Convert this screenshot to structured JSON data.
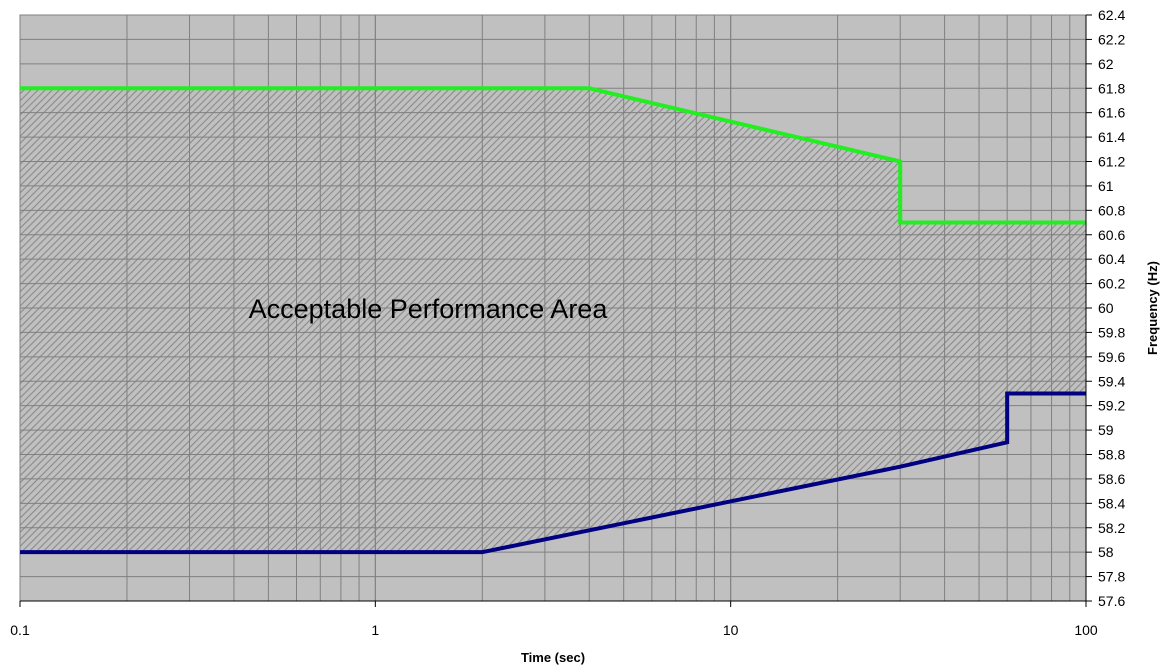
{
  "chart_data": {
    "type": "line",
    "title": "",
    "xlabel": "Time (sec)",
    "ylabel": "Frequency (Hz)",
    "x_scale": "log",
    "xlim": [
      0.1,
      100
    ],
    "ylim": [
      57.6,
      62.4
    ],
    "y_tick_step": 0.2,
    "x_tick_labels": [
      "0.1",
      "1",
      "10",
      "100"
    ],
    "y_tick_labels": [
      "57.6",
      "57.8",
      "58",
      "58.2",
      "58.4",
      "58.6",
      "58.8",
      "59",
      "59.2",
      "59.4",
      "59.6",
      "59.8",
      "60",
      "60.2",
      "60.4",
      "60.6",
      "60.8",
      "61",
      "61.2",
      "61.4",
      "61.6",
      "61.8",
      "62",
      "62.2",
      "62.4"
    ],
    "grid": true,
    "legend": "none",
    "annotation": "Acceptable Performance Area",
    "series": [
      {
        "color": "#22ee22",
        "points": [
          [
            0.1,
            61.8
          ],
          [
            4,
            61.8
          ],
          [
            30,
            61.2
          ],
          [
            30,
            60.7
          ],
          [
            100,
            60.7
          ]
        ]
      },
      {
        "color": "#000080",
        "points": [
          [
            0.1,
            58.0
          ],
          [
            2,
            58.0
          ],
          [
            30,
            58.7
          ],
          [
            60,
            58.9
          ],
          [
            60,
            59.3
          ],
          [
            100,
            59.3
          ]
        ]
      }
    ],
    "plot_background": "#c0c0c0",
    "grid_color": "#808080",
    "hatch_color": "#808080"
  }
}
